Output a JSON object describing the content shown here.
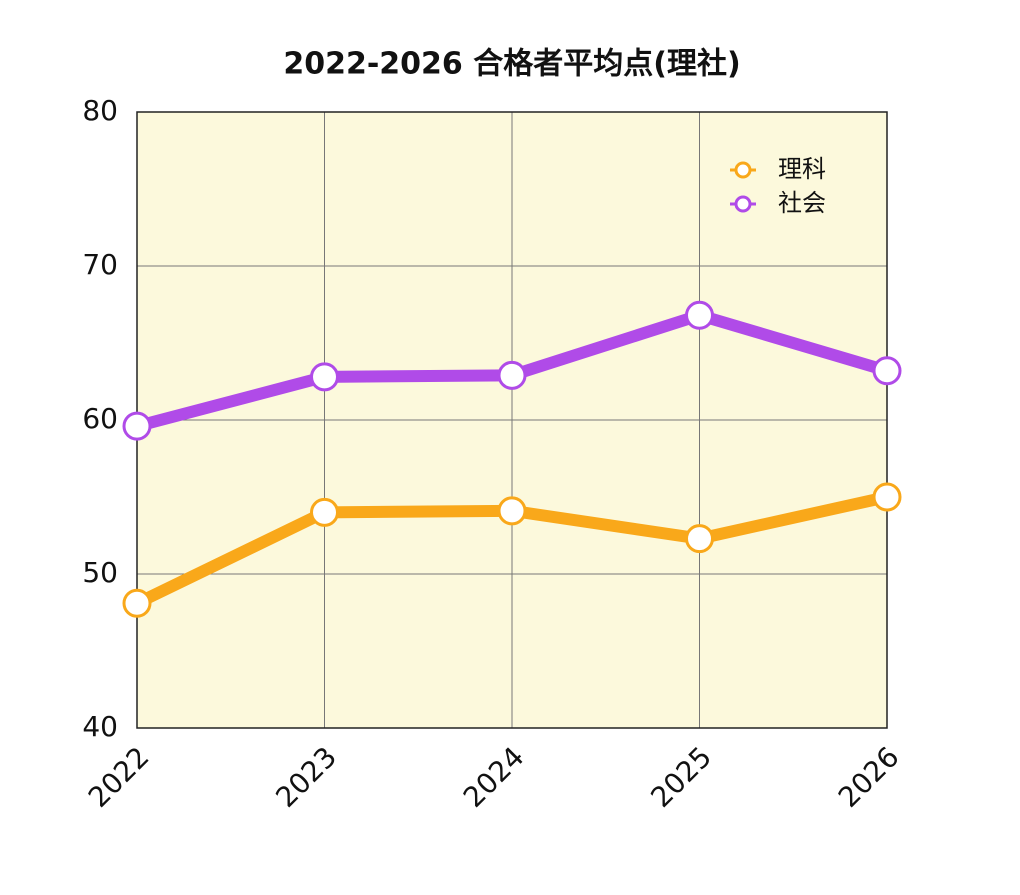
{
  "chart_data": {
    "type": "line",
    "title": "2022-2026 合格者平均点(理社)",
    "categories": [
      "2022",
      "2023",
      "2024",
      "2025",
      "2026"
    ],
    "series": [
      {
        "name": "理科",
        "color": "#f9a81a",
        "values": [
          48.1,
          54.0,
          54.1,
          52.3,
          55.0
        ]
      },
      {
        "name": "社会",
        "color": "#b04be8",
        "values": [
          59.6,
          62.8,
          62.9,
          66.8,
          63.2
        ]
      }
    ],
    "ylim": [
      40,
      80
    ],
    "yticks": [
      40,
      50,
      60,
      70,
      80
    ],
    "grid": true,
    "legend": "upper right"
  }
}
